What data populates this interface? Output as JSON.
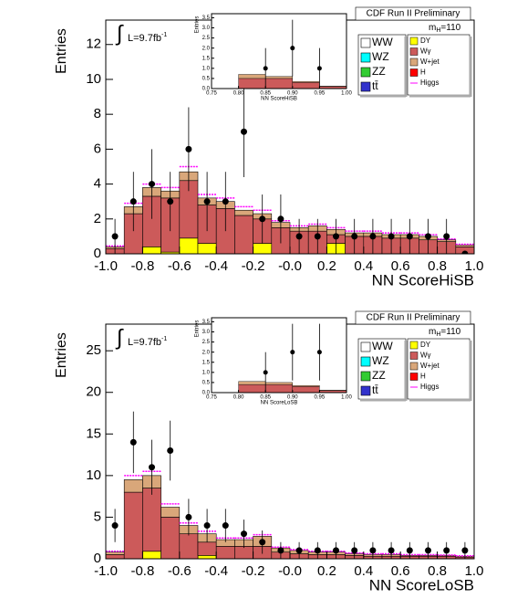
{
  "chart_data": [
    {
      "type": "histogram",
      "header": "CDF Run II Preliminary",
      "mass_label": [
        "m",
        "H",
        "=110"
      ],
      "lumi_label": [
        "L=9.7fb",
        "-1"
      ],
      "integral": "∫",
      "ylabel": "Entries",
      "xlabel": "NN ScoreHiSB",
      "bins": [
        -1.0,
        -0.9,
        -0.8,
        -0.7,
        -0.6,
        -0.5,
        -0.4,
        -0.3,
        -0.2,
        -0.1,
        0.0,
        0.1,
        0.2,
        0.3,
        0.4,
        0.5,
        0.6,
        0.7,
        0.8,
        0.9,
        1.0
      ],
      "xlim": [
        -1.0,
        1.0
      ],
      "ylim": [
        0,
        13.4
      ],
      "xticks": [
        {
          "value": -1.0,
          "label": "-1.0"
        },
        {
          "value": -0.8,
          "label": "-0.8"
        },
        {
          "value": -0.6,
          "label": "-0.6"
        },
        {
          "value": -0.4,
          "label": "-0.4"
        },
        {
          "value": -0.2,
          "label": "-0.2"
        },
        {
          "value": 0,
          "label": "-0.0"
        },
        0.2,
        0.4,
        0.6,
        0.8,
        {
          "value": 1.0,
          "label": "1.0"
        }
      ],
      "yticks": [
        0,
        2,
        4,
        6,
        8,
        10,
        12
      ],
      "series": [
        {
          "name": "DY",
          "color": "#ffff00",
          "values": [
            0,
            0,
            0.4,
            0.1,
            0.9,
            0.6,
            0,
            0,
            0.6,
            0,
            0,
            0,
            0.6,
            0,
            0,
            0,
            0,
            0,
            0,
            0
          ]
        },
        {
          "name": "Wγ",
          "color": "#cc5a5a",
          "values": [
            0.3,
            2.3,
            2.9,
            3.1,
            3.3,
            2.2,
            2.6,
            2.2,
            1.4,
            1.5,
            1.3,
            1.3,
            0.5,
            1.0,
            1.0,
            0.9,
            0.9,
            0.8,
            0.7,
            0.4
          ]
        },
        {
          "name": "W+jet",
          "color": "#d9a77a",
          "values": [
            0.1,
            0.4,
            0.5,
            0.4,
            0.5,
            0.4,
            0.4,
            0.3,
            0.3,
            0.3,
            0.2,
            0.3,
            0.3,
            0.2,
            0.2,
            0.2,
            0.2,
            0.2,
            0.1,
            0.1
          ]
        }
      ],
      "higgs": {
        "name": "Higgs",
        "color": "#ff00ff",
        "values": [
          0.05,
          0.2,
          0.2,
          0.2,
          0.3,
          0.2,
          0.2,
          0.2,
          0.2,
          0.1,
          0.1,
          0.1,
          0.1,
          0.1,
          0.1,
          0.1,
          0.1,
          0.1,
          0.05,
          0.05
        ]
      },
      "legend_only": [
        {
          "name": "WW",
          "color": "#ffffff"
        },
        {
          "name": "WZ",
          "color": "#00ffff"
        },
        {
          "name": "ZZ",
          "color": "#33cc33"
        },
        {
          "name": "tt̄",
          "color": "#3333cc"
        },
        {
          "name": "H",
          "color": "#ff0000"
        }
      ],
      "data": {
        "x": [
          -0.95,
          -0.85,
          -0.75,
          -0.65,
          -0.55,
          -0.45,
          -0.35,
          -0.25,
          -0.15,
          -0.05,
          0.05,
          0.15,
          0.25,
          0.35,
          0.45,
          0.55,
          0.65,
          0.75,
          0.85,
          0.95
        ],
        "values": [
          1,
          3,
          4,
          3,
          6,
          3,
          3,
          7,
          2,
          2,
          1,
          1,
          1,
          1,
          1,
          1,
          1,
          1,
          1,
          0
        ],
        "errors": [
          1,
          1.7,
          2,
          1.7,
          2.4,
          1.7,
          1.7,
          2.6,
          1.4,
          1.4,
          1,
          1,
          1,
          1,
          1,
          1,
          1,
          1,
          1,
          0
        ]
      },
      "inset": {
        "ylabel": "Entries",
        "xlabel": "NN ScoreHiSB",
        "bins": [
          0.75,
          0.8,
          0.85,
          0.9,
          0.95,
          1.0
        ],
        "xlim": [
          0.75,
          1.0
        ],
        "ylim": [
          0,
          3.7
        ],
        "xticks": [
          0.75,
          {
            "value": 0.8,
            "label": "0.80"
          },
          0.85,
          {
            "value": 0.9,
            "label": "0.90"
          },
          0.95,
          {
            "value": 1.0,
            "label": "1.00"
          }
        ],
        "yticks": [
          {
            "value": 0,
            "label": "0.0"
          },
          0.5,
          {
            "value": 1,
            "label": "1.0"
          },
          1.5,
          {
            "value": 2,
            "label": "2.0"
          },
          2.5,
          {
            "value": 3,
            "label": "3.0"
          },
          3.5
        ],
        "series": [
          {
            "color": "#cc5a5a",
            "values": [
              0,
              0.5,
              0.5,
              0.3,
              0.1
            ]
          },
          {
            "color": "#d9a77a",
            "values": [
              0,
              0.2,
              0.1,
              0.05,
              0.02
            ]
          }
        ],
        "data": {
          "x": [
            0.85,
            0.9,
            0.95
          ],
          "values": [
            1,
            2,
            1
          ],
          "errors": [
            1,
            1.4,
            1
          ]
        }
      }
    },
    {
      "type": "histogram",
      "header": "CDF Run II Preliminary",
      "mass_label": [
        "m",
        "H",
        "=110"
      ],
      "lumi_label": [
        "L=9.7fb",
        "-1"
      ],
      "integral": "∫",
      "ylabel": "Entries",
      "xlabel": "NN ScoreLoSB",
      "bins": [
        -1.0,
        -0.9,
        -0.8,
        -0.7,
        -0.6,
        -0.5,
        -0.4,
        -0.3,
        -0.2,
        -0.1,
        0.0,
        0.1,
        0.2,
        0.3,
        0.4,
        0.5,
        0.6,
        0.7,
        0.8,
        0.9,
        1.0
      ],
      "xlim": [
        -1.0,
        1.0
      ],
      "ylim": [
        0,
        28.2
      ],
      "xticks": [
        {
          "value": -1.0,
          "label": "-1.0"
        },
        {
          "value": -0.8,
          "label": "-0.8"
        },
        {
          "value": -0.6,
          "label": "-0.6"
        },
        {
          "value": -0.4,
          "label": "-0.4"
        },
        {
          "value": -0.2,
          "label": "-0.2"
        },
        {
          "value": 0,
          "label": "-0.0"
        },
        0.2,
        0.4,
        0.6,
        0.8,
        {
          "value": 1.0,
          "label": "1.0"
        }
      ],
      "yticks": [
        0,
        5,
        10,
        15,
        20,
        25
      ],
      "series": [
        {
          "name": "DY",
          "color": "#ffff00",
          "values": [
            0,
            0,
            0.9,
            0,
            0,
            0.4,
            0,
            0,
            0,
            0,
            0,
            0,
            0,
            0,
            0,
            0,
            0,
            0,
            0,
            0
          ]
        },
        {
          "name": "Wγ",
          "color": "#cc5a5a",
          "values": [
            0.5,
            8,
            7.6,
            5,
            3,
            1.6,
            1.5,
            1.5,
            1.5,
            0.8,
            0.6,
            0.5,
            0.5,
            0.4,
            0.3,
            0.3,
            0.3,
            0.3,
            0.3,
            0.2
          ]
        },
        {
          "name": "W+jet",
          "color": "#d9a77a",
          "values": [
            0.3,
            1.5,
            1.5,
            1.2,
            1,
            1,
            0.8,
            0.8,
            1.2,
            0.5,
            0.4,
            0.3,
            0.3,
            0.2,
            0.2,
            0.2,
            0.1,
            0.1,
            0.1,
            0.1
          ]
        }
      ],
      "higgs": {
        "name": "Higgs",
        "color": "#ff00ff",
        "values": [
          0.1,
          0.5,
          0.5,
          0.4,
          0.3,
          0.3,
          0.2,
          0.2,
          0.2,
          0.1,
          0.1,
          0.1,
          0.1,
          0.1,
          0.1,
          0.1,
          0.1,
          0.1,
          0.05,
          0.05
        ]
      },
      "legend_only": [
        {
          "name": "WW",
          "color": "#ffffff"
        },
        {
          "name": "WZ",
          "color": "#00ffff"
        },
        {
          "name": "ZZ",
          "color": "#33cc33"
        },
        {
          "name": "tt̄",
          "color": "#3333cc"
        },
        {
          "name": "H",
          "color": "#ff0000"
        }
      ],
      "data": {
        "x": [
          -0.95,
          -0.85,
          -0.75,
          -0.65,
          -0.55,
          -0.45,
          -0.35,
          -0.25,
          -0.15,
          -0.05,
          0.05,
          0.15,
          0.25,
          0.35,
          0.45,
          0.55,
          0.65,
          0.75,
          0.85,
          0.95
        ],
        "values": [
          4,
          14,
          11,
          13,
          5,
          4,
          4,
          3,
          2,
          1,
          1,
          1,
          1,
          1,
          1,
          1,
          1,
          1,
          1,
          1
        ],
        "errors": [
          2,
          3.7,
          3.3,
          3.6,
          2.2,
          2,
          2,
          1.7,
          1.4,
          1,
          1,
          1,
          1,
          1,
          1,
          1,
          1,
          1,
          1,
          1
        ]
      },
      "inset": {
        "ylabel": "Entries",
        "xlabel": "NN ScoreLoSB",
        "bins": [
          0.75,
          0.8,
          0.85,
          0.9,
          0.95,
          1.0
        ],
        "xlim": [
          0.75,
          1.0
        ],
        "ylim": [
          0,
          3.7
        ],
        "xticks": [
          0.75,
          {
            "value": 0.8,
            "label": "0.80"
          },
          0.85,
          {
            "value": 0.9,
            "label": "0.90"
          },
          0.95,
          {
            "value": 1.0,
            "label": "1.00"
          }
        ],
        "yticks": [
          {
            "value": 0,
            "label": "0.0"
          },
          0.5,
          {
            "value": 1,
            "label": "1.0"
          },
          1.5,
          {
            "value": 2,
            "label": "2.0"
          },
          2.5,
          {
            "value": 3,
            "label": "3.0"
          },
          3.5
        ],
        "series": [
          {
            "color": "#cc5a5a",
            "values": [
              0,
              0.4,
              0.4,
              0.3,
              0.1
            ]
          },
          {
            "color": "#d9a77a",
            "values": [
              0,
              0.15,
              0.1,
              0.05,
              0.02
            ]
          }
        ],
        "data": {
          "x": [
            0.85,
            0.9,
            0.95
          ],
          "values": [
            1,
            2,
            2
          ],
          "errors": [
            1,
            1.4,
            1.4
          ]
        }
      }
    }
  ]
}
